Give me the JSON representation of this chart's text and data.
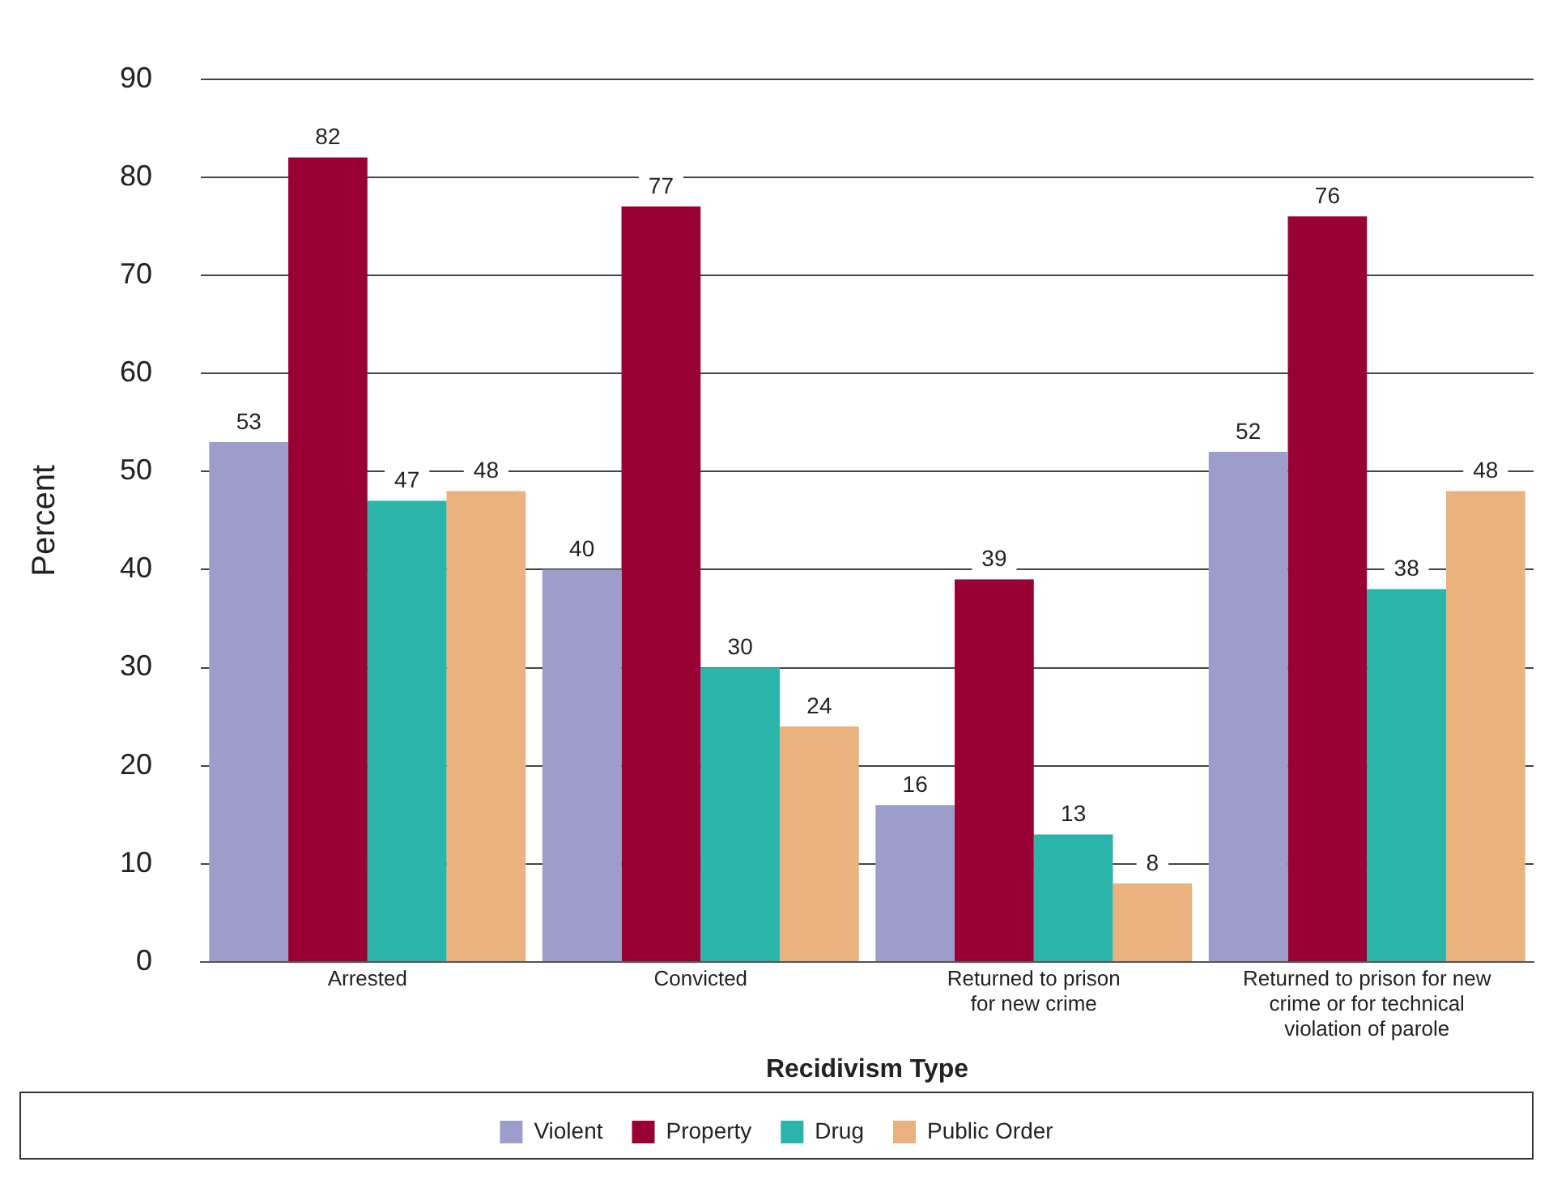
{
  "chart_data": {
    "type": "bar",
    "xlabel": "Recidivism Type",
    "ylabel": "Percent",
    "categories": [
      "Arrested",
      "Convicted",
      "Returned to prison\nfor new crime",
      "Returned to prison for new\ncrime or for technical\nviolation of parole"
    ],
    "series": [
      {
        "name": "Violent",
        "color": "#9d9dcc",
        "values": [
          53,
          40,
          16,
          52
        ]
      },
      {
        "name": "Property",
        "color": "#990033",
        "values": [
          82,
          77,
          39,
          76
        ]
      },
      {
        "name": "Drug",
        "color": "#2bb5aa",
        "values": [
          47,
          30,
          13,
          38
        ]
      },
      {
        "name": "Public Order",
        "color": "#e9b27f",
        "values": [
          48,
          24,
          8,
          48
        ]
      }
    ],
    "ylim": [
      0,
      90
    ],
    "yticks": [
      0,
      10,
      20,
      30,
      40,
      50,
      60,
      70,
      80,
      90
    ],
    "grid": "y",
    "legend": "bottom",
    "data_labels": true
  }
}
